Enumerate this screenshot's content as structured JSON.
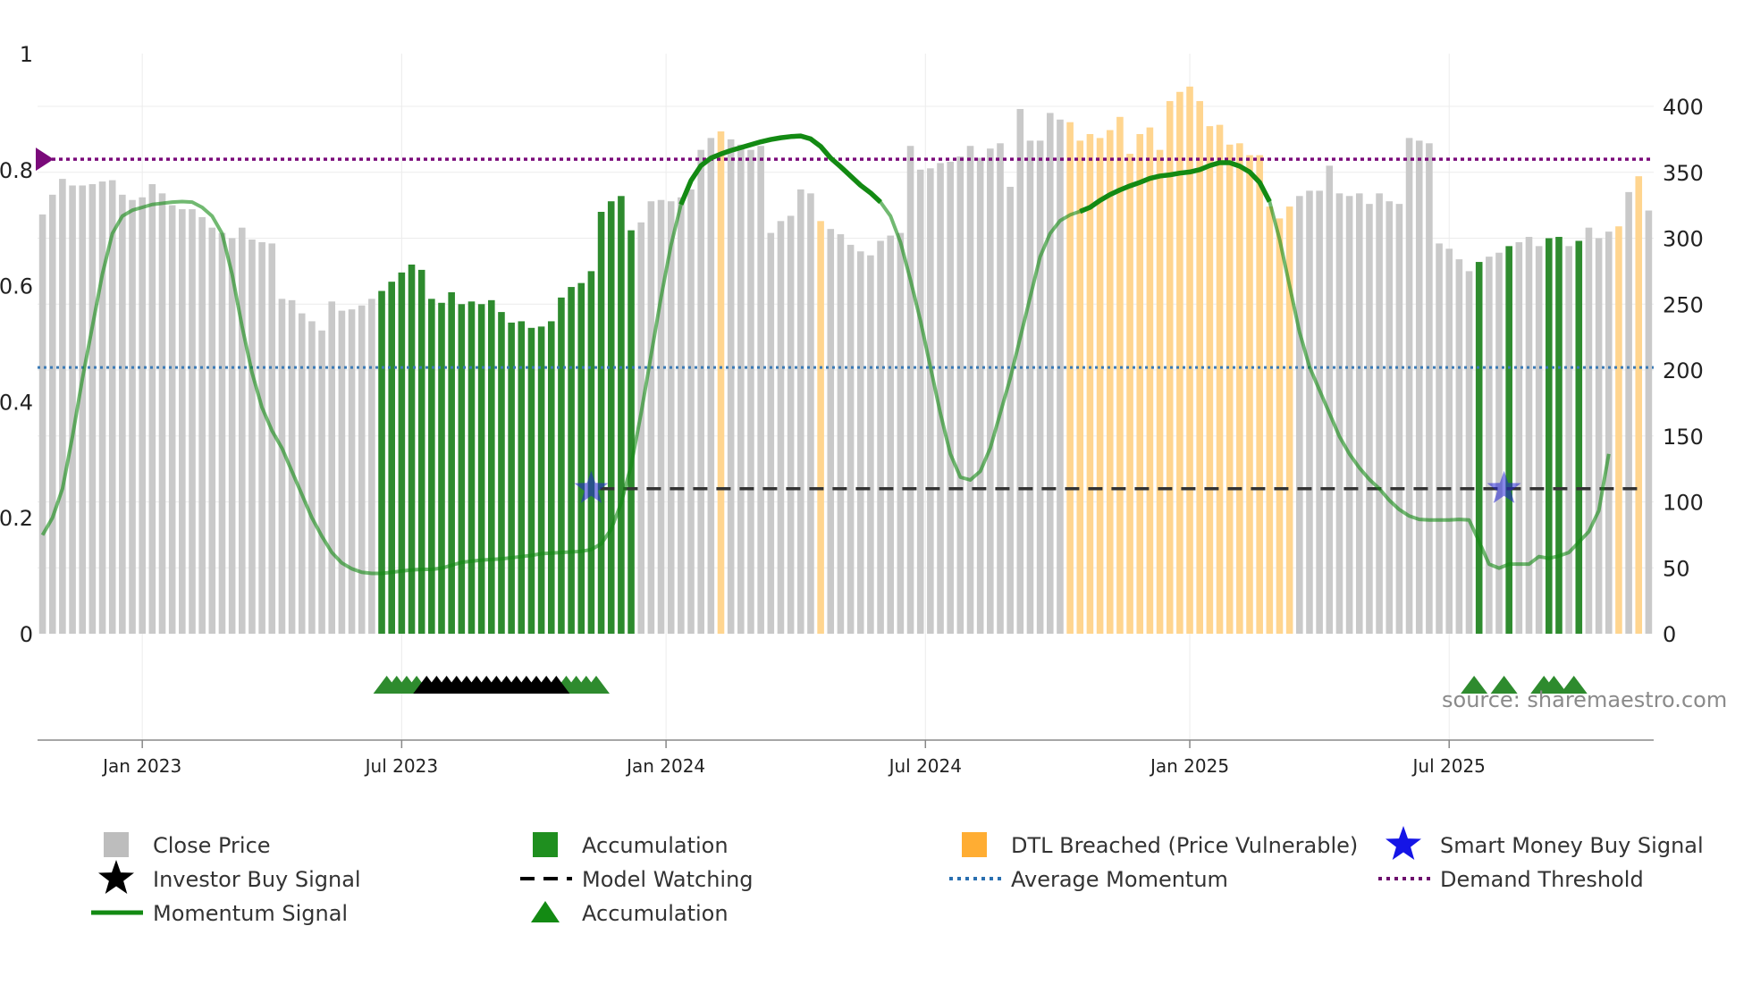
{
  "chart_data": {
    "type": "bar",
    "source_label": "source: sharemaestro.com",
    "left_axis": {
      "ticks": [
        "0",
        "0.2",
        "0.4",
        "0.6",
        "0.8",
        "1"
      ],
      "values": [
        0,
        0.2,
        0.4,
        0.6,
        0.8,
        1
      ],
      "range": [
        0,
        1
      ]
    },
    "right_axis": {
      "ticks": [
        "0",
        "50",
        "100",
        "150",
        "200",
        "250",
        "300",
        "350",
        "400"
      ],
      "values": [
        0,
        50,
        100,
        150,
        200,
        250,
        300,
        350,
        400
      ],
      "range": [
        0,
        440
      ]
    },
    "x_ticks": [
      {
        "label": "Jan 2023",
        "week": 10
      },
      {
        "label": "Jul 2023",
        "week": 36
      },
      {
        "label": "Jan 2024",
        "week": 62.5
      },
      {
        "label": "Jul 2024",
        "week": 88.5
      },
      {
        "label": "Jan 2025",
        "week": 115
      },
      {
        "label": "Jul 2025",
        "week": 141
      }
    ],
    "series": {
      "close_price": [
        318,
        333,
        345,
        340,
        340,
        341,
        343,
        344,
        333,
        329,
        331,
        341,
        334,
        325,
        322,
        322,
        316,
        308,
        304,
        300,
        308,
        299,
        297,
        296,
        254,
        253,
        243,
        237,
        230,
        252,
        245,
        246,
        249,
        254,
        260,
        267,
        274,
        280,
        276,
        254,
        251,
        259,
        250,
        252,
        250,
        253,
        244,
        236,
        237,
        232,
        233,
        237,
        255,
        263,
        266,
        275,
        320,
        328,
        332,
        306,
        312,
        328,
        329,
        328,
        331,
        337,
        367,
        376,
        381,
        375,
        371,
        367,
        370,
        304,
        313,
        317,
        337,
        334,
        313,
        307,
        303,
        295,
        290,
        287,
        298,
        302,
        304,
        370,
        352,
        353,
        357,
        358,
        362,
        370,
        361,
        368,
        372,
        339,
        398,
        374,
        374,
        395,
        390,
        388,
        374,
        379,
        376,
        382,
        392,
        364,
        379,
        384,
        367,
        404,
        411,
        415,
        404,
        385,
        386,
        371,
        372,
        363,
        363,
        324,
        315,
        324,
        332,
        336,
        336,
        355,
        334,
        332,
        334,
        326,
        334,
        328,
        326,
        376,
        374,
        372,
        296,
        292,
        284,
        275,
        282,
        286,
        289,
        294,
        297,
        301,
        294,
        300,
        301,
        294,
        298,
        308,
        300,
        305,
        309,
        335,
        347,
        321
      ],
      "accumulation_bars": [
        34,
        35,
        36,
        37,
        38,
        39,
        40,
        41,
        42,
        43,
        44,
        45,
        46,
        47,
        48,
        49,
        50,
        51,
        52,
        53,
        54,
        55,
        56,
        57,
        58,
        59,
        144,
        147,
        151,
        152,
        154
      ],
      "dtl_breached_bars": [
        68,
        78,
        103,
        104,
        105,
        106,
        107,
        108,
        109,
        110,
        111,
        112,
        113,
        114,
        115,
        116,
        117,
        118,
        119,
        120,
        121,
        122,
        123,
        124,
        125,
        158,
        160
      ],
      "momentum": [
        0.17,
        0.2,
        0.25,
        0.34,
        0.44,
        0.53,
        0.62,
        0.69,
        0.72,
        0.73,
        0.735,
        0.74,
        0.742,
        0.744,
        0.745,
        0.744,
        0.735,
        0.72,
        0.69,
        0.62,
        0.53,
        0.45,
        0.39,
        0.35,
        0.32,
        0.28,
        0.24,
        0.2,
        0.168,
        0.14,
        0.122,
        0.112,
        0.106,
        0.104,
        0.104,
        0.106,
        0.108,
        0.11,
        0.111,
        0.111,
        0.113,
        0.118,
        0.123,
        0.125,
        0.127,
        0.128,
        0.129,
        0.131,
        0.133,
        0.135,
        0.138,
        0.139,
        0.14,
        0.141,
        0.142,
        0.145,
        0.155,
        0.18,
        0.225,
        0.29,
        0.38,
        0.48,
        0.58,
        0.67,
        0.74,
        0.781,
        0.807,
        0.82,
        0.827,
        0.833,
        0.838,
        0.843,
        0.848,
        0.852,
        0.855,
        0.857,
        0.858,
        0.853,
        0.84,
        0.82,
        0.805,
        0.789,
        0.773,
        0.76,
        0.744,
        0.72,
        0.675,
        0.61,
        0.54,
        0.46,
        0.38,
        0.31,
        0.27,
        0.265,
        0.28,
        0.32,
        0.38,
        0.44,
        0.51,
        0.58,
        0.65,
        0.69,
        0.712,
        0.722,
        0.728,
        0.735,
        0.747,
        0.757,
        0.765,
        0.772,
        0.778,
        0.785,
        0.789,
        0.791,
        0.794,
        0.796,
        0.8,
        0.807,
        0.812,
        0.812,
        0.806,
        0.796,
        0.778,
        0.745,
        0.68,
        0.6,
        0.52,
        0.46,
        0.42,
        0.38,
        0.34,
        0.31,
        0.286,
        0.266,
        0.25,
        0.23,
        0.214,
        0.203,
        0.197,
        0.196,
        0.196,
        0.196,
        0.197,
        0.196,
        0.159,
        0.12,
        0.113,
        0.12,
        0.12,
        0.12,
        0.133,
        0.13,
        0.134,
        0.14,
        0.158,
        0.176,
        0.212,
        0.31
      ],
      "average_momentum": 0.459,
      "demand_threshold": 0.818,
      "model_watching": {
        "level": 0.25,
        "start_week": 55,
        "end_week": 160
      },
      "smart_money_buy_signals": [
        {
          "week": 55,
          "y": 0.25
        },
        {
          "week": 146.5,
          "y": 0.25
        }
      ],
      "accumulation_markers": [
        34.5,
        35.5,
        36.5,
        37.5,
        52.5,
        53.5,
        54.5,
        55.5,
        143.5,
        146.5,
        150.5,
        151.5,
        153.5
      ],
      "investor_buy_markers": [
        38.5,
        39.5,
        40.5,
        41.5,
        42.5,
        43.5,
        44.5,
        45.5,
        46.5,
        47.5,
        48.5,
        49.5,
        50.5,
        51.5
      ]
    },
    "colors": {
      "close_price": "#c9c9c9",
      "accumulation": "#2e8b2e",
      "dtl": "#ffd58f",
      "momentum": "#138a13",
      "average_momentum": "#3a7ab5",
      "demand_threshold": "#7a0a7a",
      "smart_money": "#2424d6",
      "model_watching": "#333333"
    },
    "legend": [
      {
        "label": "Close Price",
        "icon": "gray-square-icon"
      },
      {
        "label": "Accumulation",
        "icon": "green-square-icon"
      },
      {
        "label": "DTL Breached (Price Vulnerable)",
        "icon": "orange-square-icon"
      },
      {
        "label": "Smart Money Buy Signal",
        "icon": "blue-star-icon"
      },
      {
        "label": "Investor Buy Signal",
        "icon": "black-star-icon"
      },
      {
        "label": "Model Watching",
        "icon": "dashed-line-icon"
      },
      {
        "label": "Average Momentum",
        "icon": "dotted-line-icon"
      },
      {
        "label": "Demand Threshold",
        "icon": "purple-dotted-line-icon"
      },
      {
        "label": "Momentum Signal",
        "icon": "green-line-icon"
      },
      {
        "label": "Accumulation",
        "icon": "green-triangle-icon"
      }
    ]
  }
}
